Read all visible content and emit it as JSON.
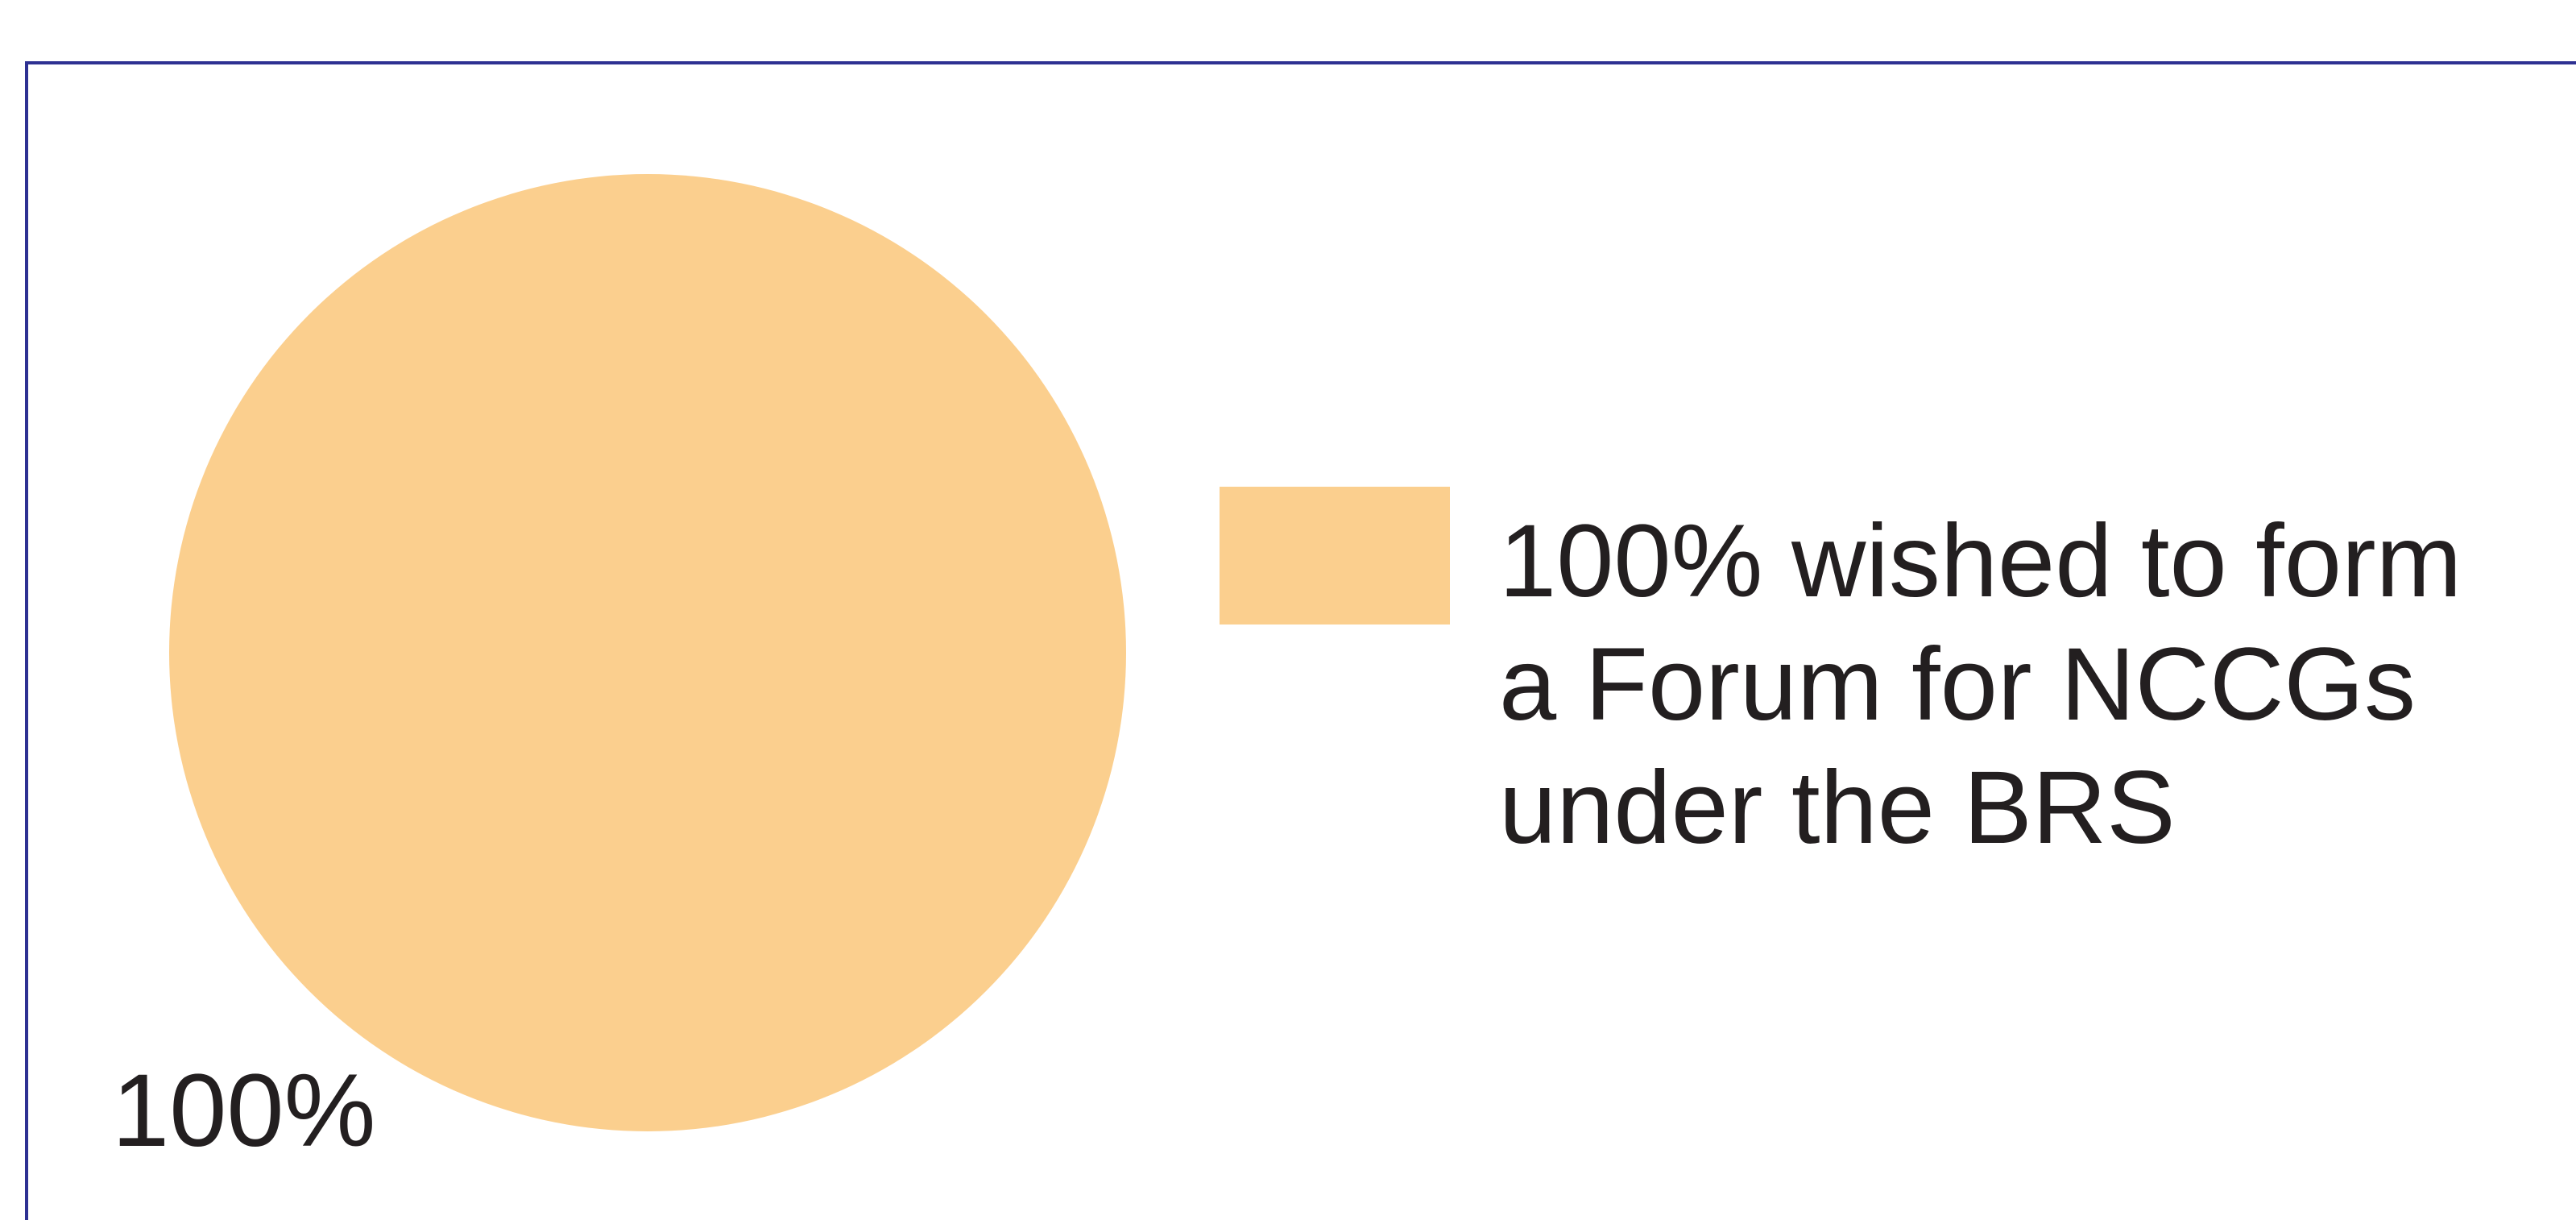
{
  "chart_data": {
    "type": "pie",
    "categories": [
      "100% wished to form a Forum for NCCGs under the BRS"
    ],
    "values": [
      100
    ],
    "value_labels": [
      "100%"
    ],
    "colors": [
      "#fbcf8e"
    ],
    "legend": true
  }
}
